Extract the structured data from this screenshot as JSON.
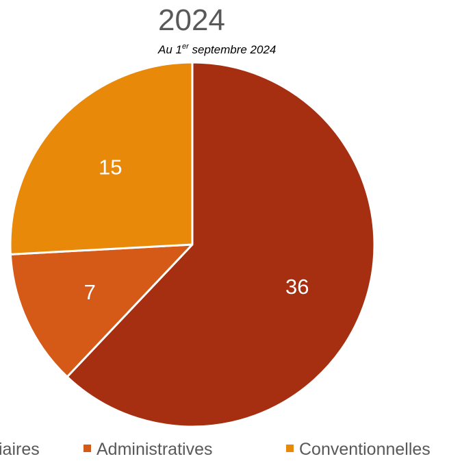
{
  "chart_data": {
    "type": "pie",
    "title": "2024",
    "subtitle": {
      "prefix": "Au 1",
      "superscript": "er",
      "suffix": " septembre 2024"
    },
    "slices": [
      {
        "label": "Judiciaires",
        "legend_visible_text": "iaires",
        "value": 36,
        "color": "#a52f10"
      },
      {
        "label": "Administratives",
        "value": 7,
        "color": "#d55a17"
      },
      {
        "label": "Conventionnelles",
        "value": 15,
        "color": "#e8890a"
      }
    ],
    "start_angle_deg": 0,
    "direction": "clockwise",
    "legend_position": "bottom",
    "data_labels": true
  }
}
